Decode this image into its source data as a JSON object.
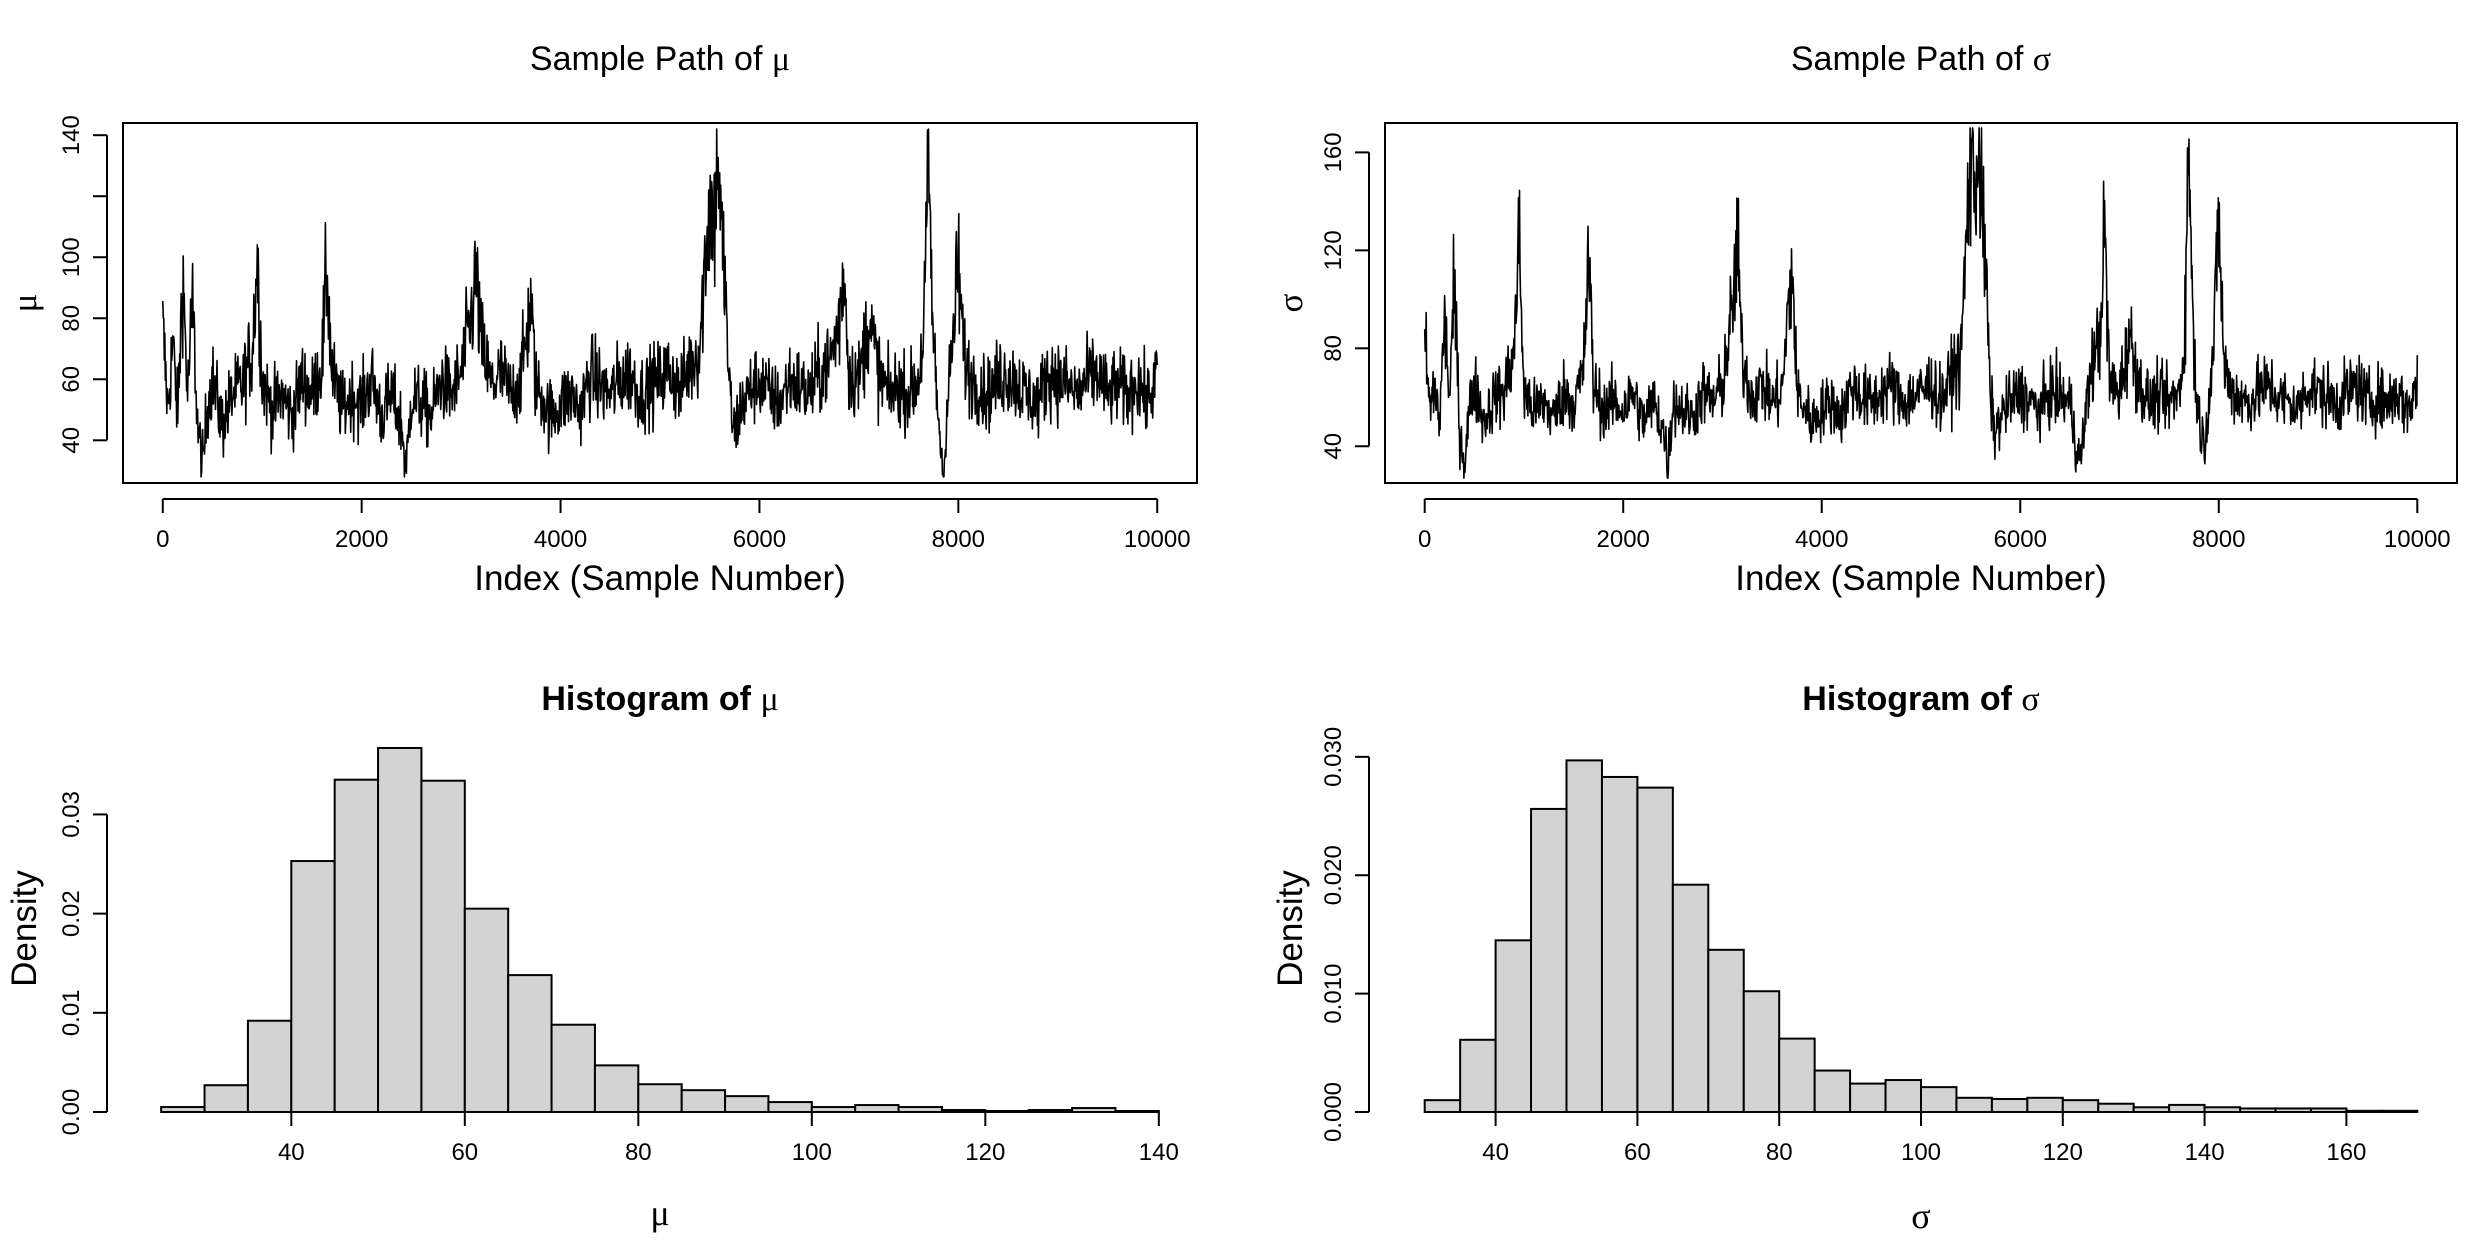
{
  "colors": {
    "line": "#000000",
    "bar_fill": "#d3d3d3",
    "bar_stroke": "#000000",
    "background": "#ffffff"
  },
  "chart_data": [
    {
      "type": "line",
      "title": "Sample Path of",
      "title_symbol": "μ",
      "xlabel": "Index (Sample Number)",
      "ylabel": "μ",
      "xlim": [
        -400,
        10400
      ],
      "ylim": [
        26,
        144
      ],
      "xticks": [
        0,
        2000,
        4000,
        6000,
        8000,
        10000
      ],
      "xtick_labels": [
        "0",
        "2000",
        "4000",
        "6000",
        "8000",
        "10000"
      ],
      "yticks": [
        40,
        60,
        80,
        100,
        120,
        140
      ],
      "ytick_labels": [
        "40",
        "60",
        "80",
        "100",
        "",
        "140"
      ],
      "n_samples": 10000,
      "trace_knots": [
        [
          0,
          77
        ],
        [
          50,
          50
        ],
        [
          100,
          72
        ],
        [
          150,
          48
        ],
        [
          200,
          95
        ],
        [
          250,
          55
        ],
        [
          300,
          85
        ],
        [
          350,
          45
        ],
        [
          400,
          30
        ],
        [
          450,
          52
        ],
        [
          500,
          60
        ],
        [
          600,
          45
        ],
        [
          700,
          55
        ],
        [
          800,
          58
        ],
        [
          900,
          70
        ],
        [
          950,
          100
        ],
        [
          1000,
          60
        ],
        [
          1100,
          50
        ],
        [
          1200,
          55
        ],
        [
          1300,
          48
        ],
        [
          1400,
          60
        ],
        [
          1500,
          55
        ],
        [
          1600,
          65
        ],
        [
          1650,
          97
        ],
        [
          1700,
          62
        ],
        [
          1800,
          50
        ],
        [
          1900,
          55
        ],
        [
          2000,
          52
        ],
        [
          2100,
          60
        ],
        [
          2200,
          48
        ],
        [
          2300,
          55
        ],
        [
          2400,
          45
        ],
        [
          2450,
          30
        ],
        [
          2500,
          55
        ],
        [
          2600,
          52
        ],
        [
          2700,
          48
        ],
        [
          2800,
          60
        ],
        [
          2900,
          55
        ],
        [
          3000,
          62
        ],
        [
          3100,
          80
        ],
        [
          3150,
          94
        ],
        [
          3200,
          72
        ],
        [
          3300,
          58
        ],
        [
          3400,
          62
        ],
        [
          3500,
          55
        ],
        [
          3600,
          60
        ],
        [
          3700,
          85
        ],
        [
          3750,
          58
        ],
        [
          3800,
          55
        ],
        [
          3900,
          48
        ],
        [
          4000,
          52
        ],
        [
          4100,
          55
        ],
        [
          4200,
          50
        ],
        [
          4300,
          62
        ],
        [
          4400,
          58
        ],
        [
          4500,
          55
        ],
        [
          4600,
          60
        ],
        [
          4700,
          62
        ],
        [
          4800,
          55
        ],
        [
          4900,
          58
        ],
        [
          5000,
          60
        ],
        [
          5100,
          63
        ],
        [
          5200,
          56
        ],
        [
          5300,
          65
        ],
        [
          5400,
          70
        ],
        [
          5450,
          98
        ],
        [
          5500,
          118
        ],
        [
          5550,
          112
        ],
        [
          5580,
          139
        ],
        [
          5600,
          120
        ],
        [
          5620,
          105
        ],
        [
          5650,
          95
        ],
        [
          5700,
          55
        ],
        [
          5750,
          42
        ],
        [
          5800,
          50
        ],
        [
          5900,
          56
        ],
        [
          6000,
          60
        ],
        [
          6100,
          55
        ],
        [
          6200,
          52
        ],
        [
          6300,
          60
        ],
        [
          6400,
          58
        ],
        [
          6500,
          55
        ],
        [
          6600,
          62
        ],
        [
          6700,
          65
        ],
        [
          6800,
          78
        ],
        [
          6850,
          97
        ],
        [
          6900,
          62
        ],
        [
          7000,
          60
        ],
        [
          7100,
          80
        ],
        [
          7200,
          62
        ],
        [
          7300,
          55
        ],
        [
          7400,
          58
        ],
        [
          7500,
          55
        ],
        [
          7600,
          60
        ],
        [
          7650,
          75
        ],
        [
          7700,
          130
        ],
        [
          7750,
          70
        ],
        [
          7800,
          48
        ],
        [
          7850,
          28
        ],
        [
          7900,
          56
        ],
        [
          7950,
          75
        ],
        [
          8000,
          98
        ],
        [
          8050,
          70
        ],
        [
          8100,
          62
        ],
        [
          8200,
          58
        ],
        [
          8300,
          55
        ],
        [
          8400,
          60
        ],
        [
          8500,
          62
        ],
        [
          8600,
          58
        ],
        [
          8700,
          55
        ],
        [
          8800,
          52
        ],
        [
          8900,
          62
        ],
        [
          9000,
          60
        ],
        [
          9100,
          58
        ],
        [
          9200,
          55
        ],
        [
          9300,
          60
        ],
        [
          9400,
          62
        ],
        [
          9500,
          55
        ],
        [
          9600,
          58
        ],
        [
          9700,
          55
        ],
        [
          9800,
          60
        ],
        [
          9900,
          52
        ],
        [
          10000,
          62
        ]
      ]
    },
    {
      "type": "line",
      "title": "Sample Path of",
      "title_symbol": "σ",
      "xlabel": "Index (Sample Number)",
      "ylabel": "σ",
      "xlim": [
        -400,
        10400
      ],
      "ylim": [
        25,
        172
      ],
      "xticks": [
        0,
        2000,
        4000,
        6000,
        8000,
        10000
      ],
      "xtick_labels": [
        "0",
        "2000",
        "4000",
        "6000",
        "8000",
        "10000"
      ],
      "yticks": [
        40,
        80,
        120,
        160
      ],
      "ytick_labels": [
        "40",
        "80",
        "120",
        "160"
      ],
      "n_samples": 10000,
      "trace_knots": [
        [
          0,
          85
        ],
        [
          50,
          55
        ],
        [
          100,
          65
        ],
        [
          150,
          50
        ],
        [
          200,
          92
        ],
        [
          250,
          60
        ],
        [
          300,
          105
        ],
        [
          350,
          48
        ],
        [
          400,
          33
        ],
        [
          450,
          55
        ],
        [
          500,
          65
        ],
        [
          600,
          50
        ],
        [
          700,
          60
        ],
        [
          800,
          62
        ],
        [
          900,
          78
        ],
        [
          950,
          126
        ],
        [
          1000,
          62
        ],
        [
          1100,
          55
        ],
        [
          1200,
          58
        ],
        [
          1300,
          52
        ],
        [
          1400,
          62
        ],
        [
          1500,
          58
        ],
        [
          1600,
          70
        ],
        [
          1650,
          118
        ],
        [
          1700,
          65
        ],
        [
          1800,
          55
        ],
        [
          1900,
          58
        ],
        [
          2000,
          55
        ],
        [
          2100,
          62
        ],
        [
          2200,
          50
        ],
        [
          2300,
          58
        ],
        [
          2400,
          48
        ],
        [
          2450,
          32
        ],
        [
          2500,
          58
        ],
        [
          2600,
          55
        ],
        [
          2700,
          52
        ],
        [
          2800,
          62
        ],
        [
          2900,
          58
        ],
        [
          3000,
          65
        ],
        [
          3100,
          95
        ],
        [
          3150,
          123
        ],
        [
          3200,
          75
        ],
        [
          3300,
          60
        ],
        [
          3400,
          65
        ],
        [
          3500,
          58
        ],
        [
          3600,
          62
        ],
        [
          3700,
          115
        ],
        [
          3750,
          62
        ],
        [
          3800,
          58
        ],
        [
          3900,
          50
        ],
        [
          4000,
          55
        ],
        [
          4100,
          58
        ],
        [
          4200,
          52
        ],
        [
          4300,
          65
        ],
        [
          4400,
          60
        ],
        [
          4500,
          58
        ],
        [
          4600,
          62
        ],
        [
          4700,
          65
        ],
        [
          4800,
          58
        ],
        [
          4900,
          60
        ],
        [
          5000,
          62
        ],
        [
          5100,
          66
        ],
        [
          5200,
          58
        ],
        [
          5300,
          68
        ],
        [
          5400,
          75
        ],
        [
          5450,
          120
        ],
        [
          5500,
          158
        ],
        [
          5550,
          148
        ],
        [
          5580,
          168
        ],
        [
          5600,
          150
        ],
        [
          5620,
          130
        ],
        [
          5650,
          115
        ],
        [
          5700,
          58
        ],
        [
          5750,
          45
        ],
        [
          5800,
          52
        ],
        [
          5900,
          58
        ],
        [
          6000,
          62
        ],
        [
          6100,
          58
        ],
        [
          6200,
          55
        ],
        [
          6300,
          62
        ],
        [
          6400,
          60
        ],
        [
          6500,
          58
        ],
        [
          6600,
          32
        ],
        [
          6700,
          68
        ],
        [
          6800,
          85
        ],
        [
          6850,
          128
        ],
        [
          6900,
          65
        ],
        [
          7000,
          62
        ],
        [
          7100,
          85
        ],
        [
          7200,
          65
        ],
        [
          7300,
          58
        ],
        [
          7400,
          60
        ],
        [
          7500,
          58
        ],
        [
          7600,
          62
        ],
        [
          7650,
          80
        ],
        [
          7700,
          163
        ],
        [
          7750,
          75
        ],
        [
          7800,
          52
        ],
        [
          7850,
          40
        ],
        [
          7900,
          60
        ],
        [
          7950,
          80
        ],
        [
          8000,
          136
        ],
        [
          8050,
          75
        ],
        [
          8100,
          65
        ],
        [
          8200,
          60
        ],
        [
          8300,
          58
        ],
        [
          8400,
          62
        ],
        [
          8500,
          65
        ],
        [
          8600,
          60
        ],
        [
          8700,
          58
        ],
        [
          8800,
          55
        ],
        [
          8900,
          65
        ],
        [
          9000,
          62
        ],
        [
          9100,
          60
        ],
        [
          9200,
          58
        ],
        [
          9300,
          62
        ],
        [
          9400,
          65
        ],
        [
          9500,
          58
        ],
        [
          9600,
          60
        ],
        [
          9700,
          58
        ],
        [
          9800,
          62
        ],
        [
          9900,
          55
        ],
        [
          10000,
          65
        ]
      ]
    },
    {
      "type": "bar",
      "title": "Histogram of",
      "title_symbol": "μ",
      "xlabel": "μ",
      "ylabel": "Density",
      "xlim": [
        20.6,
        144.4
      ],
      "ylim": [
        0,
        0.037
      ],
      "xticks": [
        40,
        60,
        80,
        100,
        120,
        140
      ],
      "xtick_labels": [
        "40",
        "60",
        "80",
        "100",
        "120",
        "140"
      ],
      "yticks": [
        0,
        0.01,
        0.02,
        0.03
      ],
      "ytick_labels": [
        "0.00",
        "0.01",
        "0.02",
        "0.03"
      ],
      "bin_edges": [
        25,
        30,
        35,
        40,
        45,
        50,
        55,
        60,
        65,
        70,
        75,
        80,
        85,
        90,
        95,
        100,
        105,
        110,
        115,
        120,
        125,
        130,
        135,
        140
      ],
      "values": [
        0.0005,
        0.0027,
        0.0092,
        0.0253,
        0.0335,
        0.0367,
        0.0334,
        0.0205,
        0.0138,
        0.0088,
        0.0047,
        0.0028,
        0.0022,
        0.0016,
        0.001,
        0.0005,
        0.0007,
        0.0005,
        0.0002,
        0.0001,
        0.0002,
        0.0004,
        0.0001
      ]
    },
    {
      "type": "bar",
      "title": "Histogram of",
      "title_symbol": "σ",
      "xlabel": "σ",
      "ylabel": "Density",
      "xlim": [
        24.4,
        175.6
      ],
      "ylim": [
        0,
        0.031
      ],
      "xticks": [
        40,
        60,
        80,
        100,
        120,
        140,
        160
      ],
      "xtick_labels": [
        "40",
        "60",
        "80",
        "100",
        "120",
        "140",
        "160"
      ],
      "yticks": [
        0,
        0.01,
        0.02,
        0.03
      ],
      "ytick_labels": [
        "0.000",
        "0.010",
        "0.020",
        "0.030"
      ],
      "bin_edges": [
        30,
        35,
        40,
        45,
        50,
        55,
        60,
        65,
        70,
        75,
        80,
        85,
        90,
        95,
        100,
        105,
        110,
        115,
        120,
        125,
        130,
        135,
        140,
        145,
        150,
        155,
        160,
        165,
        170
      ],
      "values": [
        0.001,
        0.0061,
        0.0145,
        0.0256,
        0.0297,
        0.0283,
        0.0274,
        0.0192,
        0.0137,
        0.0102,
        0.0062,
        0.0035,
        0.0024,
        0.0027,
        0.0021,
        0.0012,
        0.0011,
        0.0012,
        0.001,
        0.0007,
        0.0004,
        0.0006,
        0.0004,
        0.0003,
        0.0003,
        0.0003,
        0.0001,
        0.0001
      ]
    }
  ]
}
